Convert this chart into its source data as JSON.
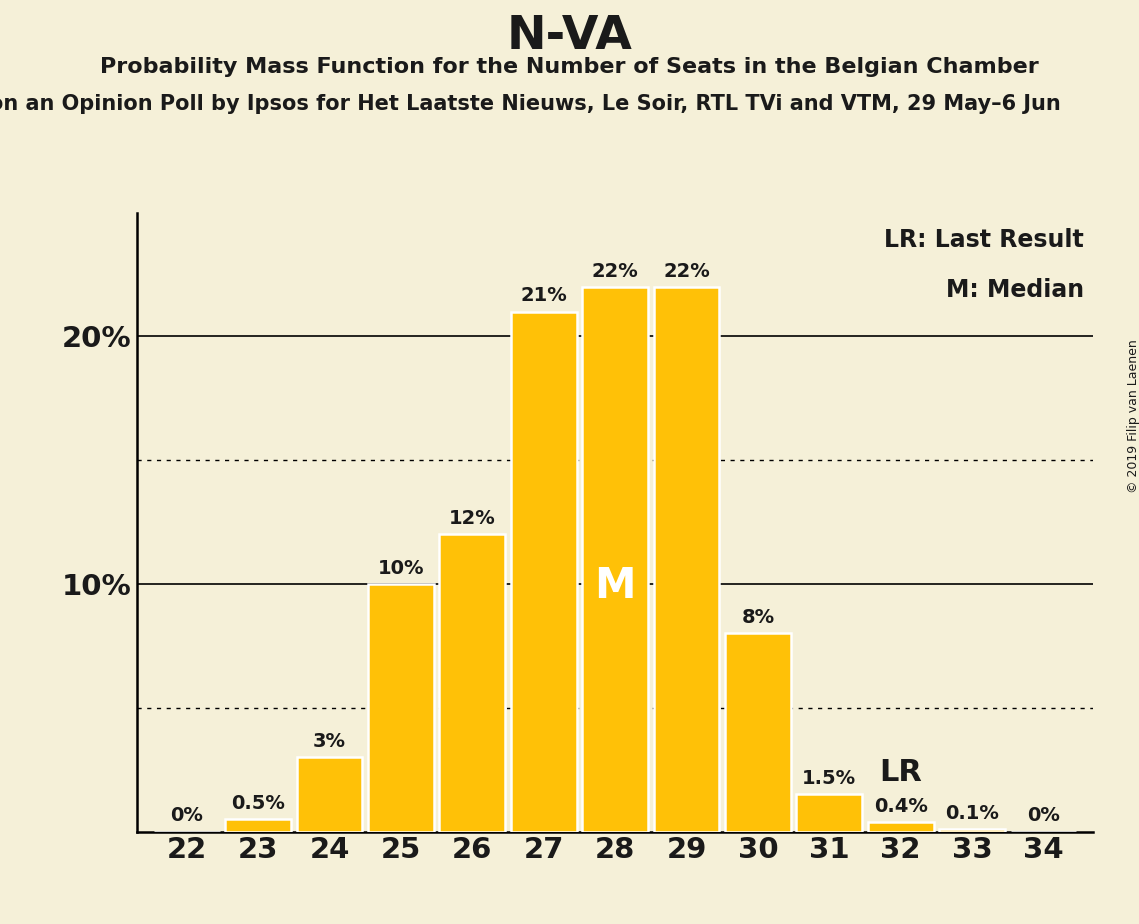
{
  "title": "N-VA",
  "subtitle1": "Probability Mass Function for the Number of Seats in the Belgian Chamber",
  "subtitle2": "on an Opinion Poll by Ipsos for Het Laatste Nieuws, Le Soir, RTL TVi and VTM, 29 May–6 Jun",
  "copyright": "© 2019 Filip van Laenen",
  "categories": [
    22,
    23,
    24,
    25,
    26,
    27,
    28,
    29,
    30,
    31,
    32,
    33,
    34
  ],
  "values": [
    0.0,
    0.5,
    3.0,
    10.0,
    12.0,
    21.0,
    22.0,
    22.0,
    8.0,
    1.5,
    0.4,
    0.1,
    0.0
  ],
  "bar_color": "#FFC107",
  "bar_edge_color": "#FFFFFF",
  "background_color": "#F5F0D8",
  "text_color": "#1A1A1A",
  "median_seat": 28,
  "lr_seat": 32,
  "ytick_values": [
    10,
    20
  ],
  "dotted_lines": [
    5,
    15
  ],
  "ylim": [
    0,
    25
  ],
  "xlim": [
    21.3,
    34.7
  ],
  "bar_labels": [
    "0%",
    "0.5%",
    "3%",
    "10%",
    "12%",
    "21%",
    "22%",
    "22%",
    "8%",
    "1.5%",
    "0.4%",
    "0.1%",
    "0%"
  ],
  "title_fontsize": 34,
  "subtitle1_fontsize": 16,
  "subtitle2_fontsize": 15,
  "tick_fontsize": 21,
  "bar_label_fontsize": 14,
  "legend_fontsize": 17,
  "lr_fontsize": 22,
  "median_fontsize": 30,
  "copyright_fontsize": 9
}
